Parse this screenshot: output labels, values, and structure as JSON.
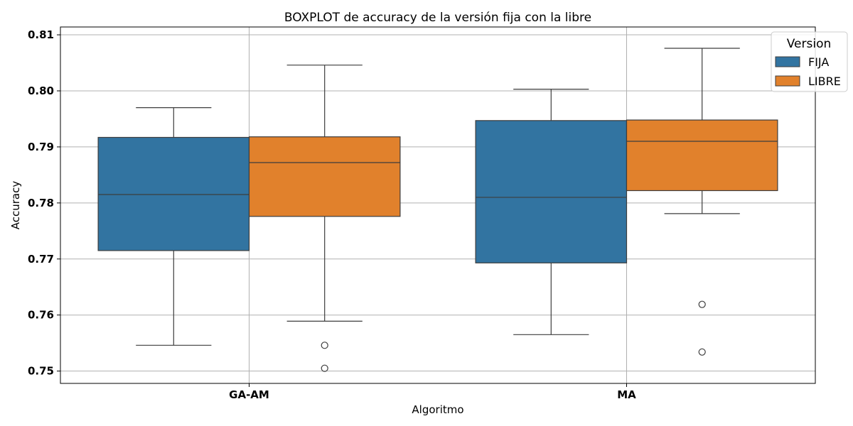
{
  "chart_data": {
    "type": "boxplot",
    "title": "BOXPLOT de accuracy de la versión fija con la libre",
    "xlabel": "Algoritmo",
    "ylabel": "Accuracy",
    "ylim": [
      0.7478,
      0.8114
    ],
    "yticks": [
      "0.75",
      "0.76",
      "0.77",
      "0.78",
      "0.79",
      "0.80",
      "0.81"
    ],
    "categories": [
      "GA-AM",
      "MA"
    ],
    "grid": true,
    "legend": {
      "title": "Version",
      "position": "top-right",
      "entries": [
        "FIJA",
        "LIBRE"
      ]
    },
    "series": [
      {
        "name": "FIJA",
        "color": "#3274a1",
        "boxes": [
          {
            "whisker_low": 0.7546,
            "q1": 0.7715,
            "median": 0.7815,
            "q3": 0.7917,
            "whisker_high": 0.797,
            "outliers": []
          },
          {
            "whisker_low": 0.7565,
            "q1": 0.7693,
            "median": 0.781,
            "q3": 0.7947,
            "whisker_high": 0.8003,
            "outliers": []
          }
        ]
      },
      {
        "name": "LIBRE",
        "color": "#e1812c",
        "boxes": [
          {
            "whisker_low": 0.7589,
            "q1": 0.7776,
            "median": 0.7872,
            "q3": 0.7918,
            "whisker_high": 0.8046,
            "outliers": [
              0.7546,
              0.7505
            ]
          },
          {
            "whisker_low": 0.7781,
            "q1": 0.7822,
            "median": 0.791,
            "q3": 0.7948,
            "whisker_high": 0.8076,
            "outliers": [
              0.7619,
              0.7534
            ]
          }
        ]
      }
    ]
  }
}
